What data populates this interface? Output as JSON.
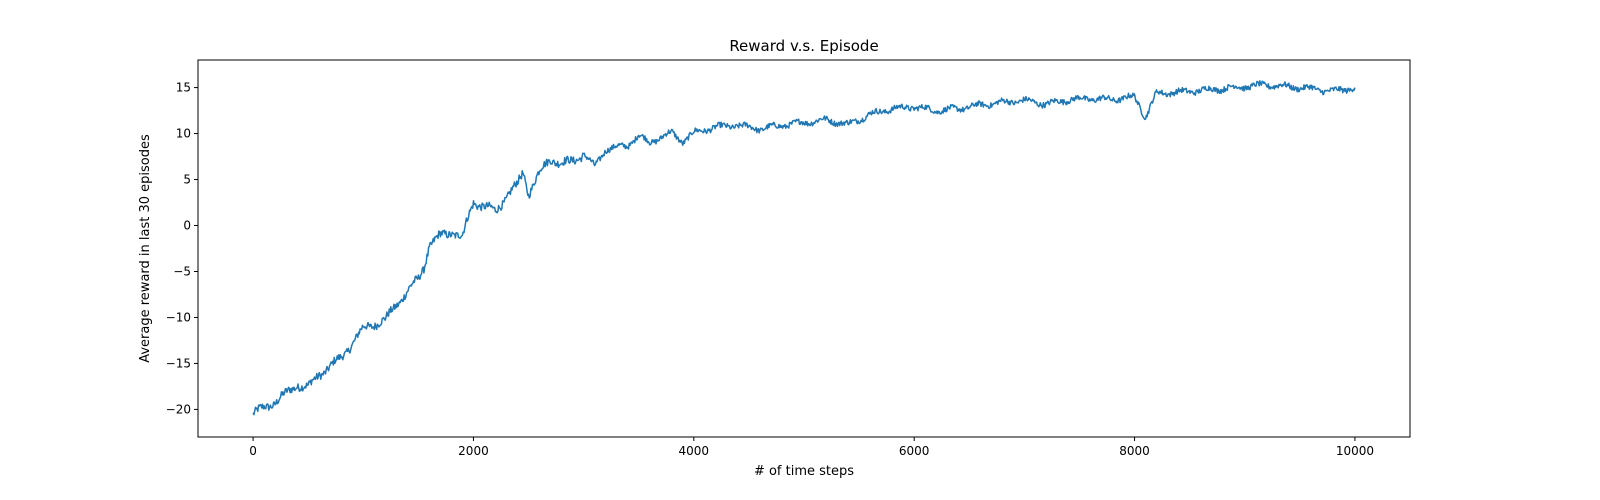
{
  "chart_data": {
    "type": "line",
    "title": "Reward v.s. Episode",
    "xlabel": "# of time steps",
    "ylabel": "Average reward in last 30 episodes",
    "xlim": [
      -500,
      10500
    ],
    "ylim": [
      -23,
      18
    ],
    "xticks": [
      0,
      2000,
      4000,
      6000,
      8000,
      10000
    ],
    "yticks": [
      -20,
      -15,
      -10,
      -5,
      0,
      5,
      10,
      15
    ],
    "xtick_labels": [
      "0",
      "2000",
      "4000",
      "6000",
      "8000",
      "10000"
    ],
    "ytick_labels": [
      "−20",
      "−15",
      "−10",
      "−5",
      "0",
      "5",
      "10",
      "15"
    ],
    "grid": false,
    "line_color": "#1f77b4",
    "series": [
      {
        "x": [
          0,
          100,
          200,
          300,
          400,
          500,
          600,
          700,
          800,
          900,
          1000,
          1100,
          1200,
          1300,
          1400,
          1500,
          1550,
          1600,
          1700,
          1800,
          1900,
          1950,
          2000,
          2100,
          2200,
          2300,
          2400,
          2450,
          2500,
          2600,
          2700,
          2800,
          2900,
          3000,
          3100,
          3200,
          3300,
          3400,
          3500,
          3600,
          3700,
          3800,
          3900,
          4000,
          4200,
          4400,
          4600,
          4800,
          5000,
          5200,
          5400,
          5600,
          5800,
          6000,
          6200,
          6400,
          6600,
          6800,
          7000,
          7200,
          7400,
          7600,
          7800,
          8000,
          8100,
          8200,
          8400,
          8600,
          8800,
          9000,
          9200,
          9400,
          9600,
          9800,
          10000
        ],
        "y": [
          -20.5,
          -19.8,
          -19.2,
          -18.3,
          -17.3,
          -17.6,
          -16.2,
          -15.3,
          -14.4,
          -12.8,
          -11.2,
          -10.7,
          -10.3,
          -8.6,
          -7.2,
          -5.8,
          -4.5,
          -2.2,
          -1.1,
          -0.7,
          -1.3,
          0.8,
          2.6,
          2.0,
          1.6,
          3.1,
          4.5,
          5.8,
          3.5,
          5.8,
          7.3,
          6.7,
          7.0,
          7.8,
          6.4,
          8.3,
          8.5,
          8.7,
          9.8,
          9.0,
          9.6,
          10.1,
          9.1,
          10.1,
          10.7,
          10.9,
          10.5,
          10.9,
          11.2,
          11.5,
          11.0,
          12.1,
          12.7,
          12.9,
          12.5,
          12.7,
          13.1,
          13.4,
          13.6,
          13.2,
          13.7,
          13.8,
          13.7,
          14.0,
          11.8,
          14.4,
          14.5,
          14.7,
          14.9,
          15.1,
          15.3,
          15.1,
          14.9,
          14.6,
          15.0
        ]
      }
    ]
  }
}
